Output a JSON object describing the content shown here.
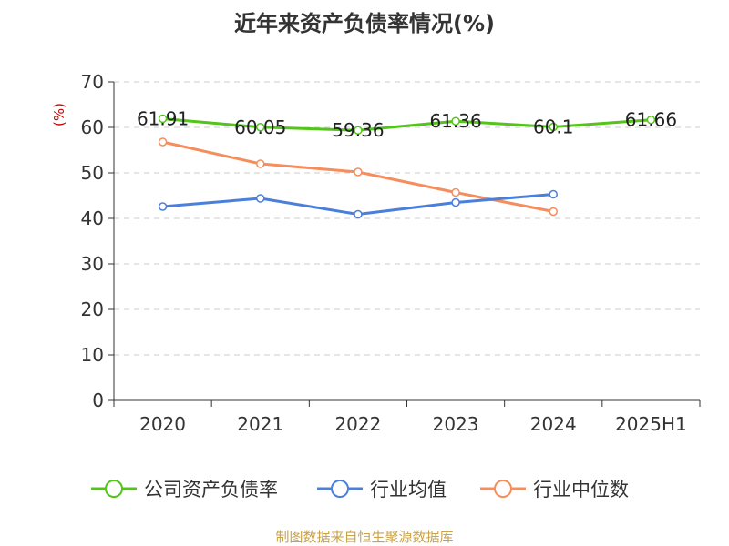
{
  "chart_data": {
    "type": "line",
    "title": "近年来资产负债率情况(%)",
    "ylabel": "(%)",
    "categories": [
      "2020",
      "2021",
      "2022",
      "2023",
      "2024",
      "2025H1"
    ],
    "ylim": [
      0,
      70
    ],
    "yticks": [
      0,
      10,
      20,
      30,
      40,
      50,
      60,
      70
    ],
    "grid": true,
    "legend_position": "bottom",
    "series": [
      {
        "name": "公司资产负债率",
        "color": "#52c41a",
        "values": [
          61.91,
          60.05,
          59.36,
          61.36,
          60.1,
          61.66
        ],
        "labels": [
          "61.91",
          "60.05",
          "59.36",
          "61.36",
          "60.1",
          "61.66"
        ]
      },
      {
        "name": "行业均值",
        "color": "#4a7fdb",
        "values": [
          42.6,
          44.4,
          40.9,
          43.5,
          45.3,
          null
        ]
      },
      {
        "name": "行业中位数",
        "color": "#f58d5c",
        "values": [
          56.8,
          52.0,
          50.2,
          45.7,
          41.5,
          null
        ]
      }
    ]
  },
  "source": "制图数据来自恒生聚源数据库"
}
